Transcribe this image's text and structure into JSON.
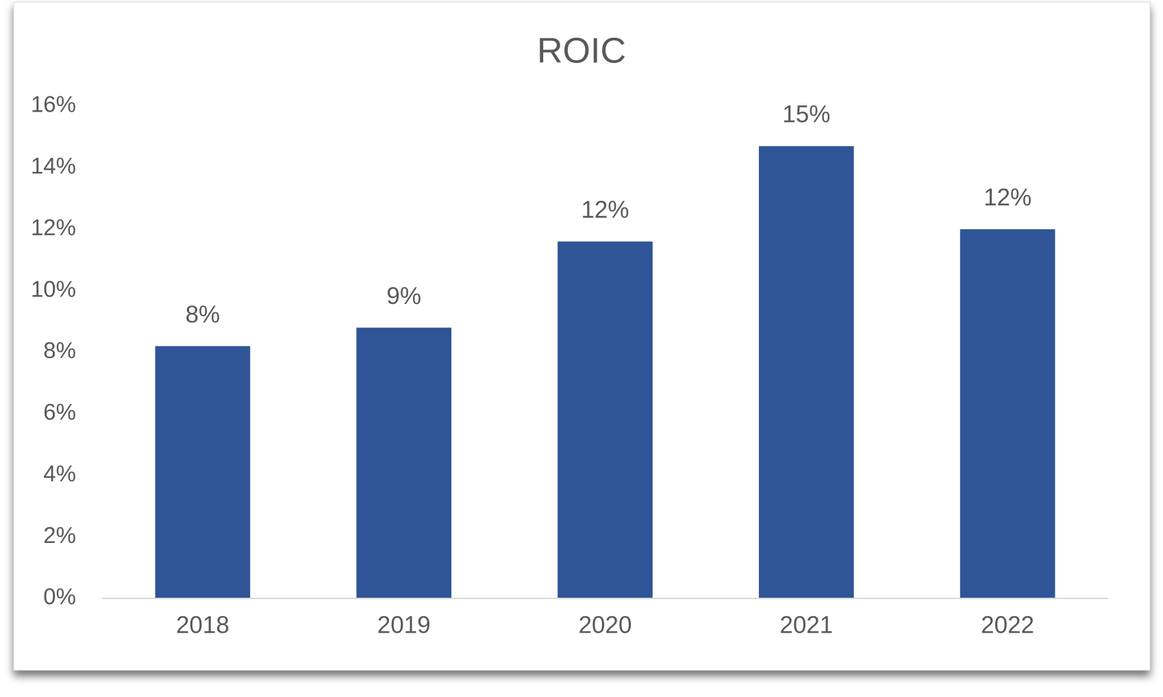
{
  "chart_data": {
    "type": "bar",
    "title": "ROIC",
    "categories": [
      "2018",
      "2019",
      "2020",
      "2021",
      "2022"
    ],
    "values": [
      8.2,
      8.8,
      11.6,
      14.7,
      12.0
    ],
    "value_labels": [
      "8%",
      "9%",
      "12%",
      "15%",
      "12%"
    ],
    "color": "#2f5597",
    "ylim": [
      0,
      16
    ],
    "yticks": [
      {
        "value": 0,
        "label": "0%"
      },
      {
        "value": 2,
        "label": "2%"
      },
      {
        "value": 4,
        "label": "4%"
      },
      {
        "value": 6,
        "label": "6%"
      },
      {
        "value": 8,
        "label": "8%"
      },
      {
        "value": 10,
        "label": "10%"
      },
      {
        "value": 12,
        "label": "12%"
      },
      {
        "value": 14,
        "label": "14%"
      },
      {
        "value": 16,
        "label": "16%"
      }
    ],
    "grid": false
  }
}
